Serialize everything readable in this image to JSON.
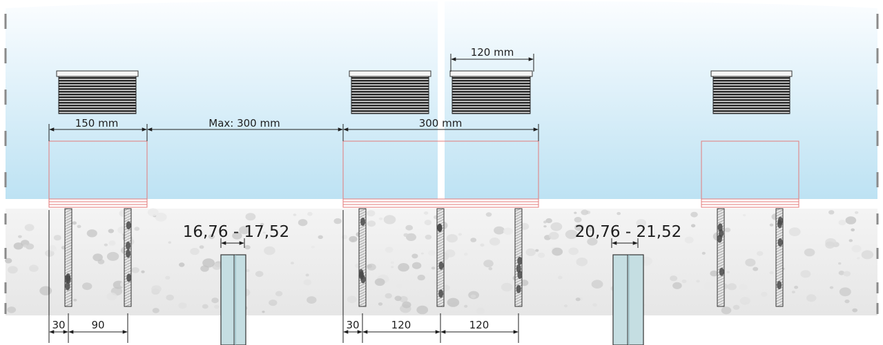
{
  "glass_panel": {
    "dimensions": {
      "clamp_width": "150 mm",
      "gap_max": "Max: 300 mm",
      "pair_span": "300 mm",
      "clamp_pair_width": "120 mm"
    }
  },
  "anchors": {
    "left": {
      "edge_offset": "30",
      "spacing": "90"
    },
    "middle": {
      "edge_offset": "30",
      "spacing_1": "120",
      "spacing_2": "120"
    }
  },
  "glass_thickness": {
    "single": "16,76 - 17,52",
    "double": "20,76 - 21,52"
  },
  "colors": {
    "glass_top": "#ffffff",
    "glass_bottom": "#bde2f3",
    "clamp_fill": "#2a2a2a",
    "guide_outline": "#e37a7a",
    "concrete": "#ececec",
    "profile": "#c5dee2"
  }
}
